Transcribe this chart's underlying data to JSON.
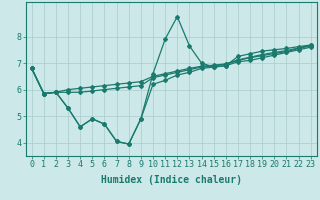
{
  "xlabel": "Humidex (Indice chaleur)",
  "ylabel": "",
  "background_color": "#cce8e8",
  "line_color": "#1a7a6e",
  "x": [
    0,
    1,
    2,
    3,
    4,
    5,
    6,
    7,
    8,
    9,
    10,
    11,
    12,
    13,
    14,
    15,
    16,
    17,
    18,
    19,
    20,
    21,
    22,
    23
  ],
  "y_min": [
    6.8,
    5.85,
    5.9,
    5.3,
    4.6,
    4.9,
    4.7,
    4.05,
    3.95,
    4.9,
    6.2,
    6.35,
    6.55,
    6.65,
    6.8,
    6.85,
    6.9,
    7.05,
    7.1,
    7.2,
    7.3,
    7.4,
    7.5,
    7.6
  ],
  "y_max": [
    6.8,
    5.85,
    5.9,
    5.3,
    4.6,
    4.9,
    4.7,
    4.05,
    3.95,
    4.9,
    6.6,
    7.9,
    8.75,
    7.65,
    7.0,
    6.85,
    6.9,
    7.25,
    7.35,
    7.45,
    7.5,
    7.55,
    7.62,
    7.68
  ],
  "y_mean1": [
    6.8,
    5.85,
    5.9,
    5.9,
    5.9,
    5.95,
    6.0,
    6.05,
    6.1,
    6.15,
    6.45,
    6.55,
    6.65,
    6.75,
    6.85,
    6.9,
    6.95,
    7.1,
    7.2,
    7.28,
    7.36,
    7.43,
    7.55,
    7.65
  ],
  "y_mean2": [
    6.8,
    5.85,
    5.9,
    6.0,
    6.05,
    6.1,
    6.15,
    6.2,
    6.25,
    6.3,
    6.5,
    6.6,
    6.7,
    6.8,
    6.88,
    6.92,
    6.97,
    7.12,
    7.22,
    7.32,
    7.4,
    7.47,
    7.57,
    7.67
  ],
  "ylim": [
    3.5,
    9.3
  ],
  "xlim": [
    -0.5,
    23.5
  ],
  "yticks": [
    4,
    5,
    6,
    7,
    8
  ],
  "xticks": [
    0,
    1,
    2,
    3,
    4,
    5,
    6,
    7,
    8,
    9,
    10,
    11,
    12,
    13,
    14,
    15,
    16,
    17,
    18,
    19,
    20,
    21,
    22,
    23
  ],
  "grid_color": "#aacccc",
  "label_fontsize": 7,
  "tick_fontsize": 6
}
